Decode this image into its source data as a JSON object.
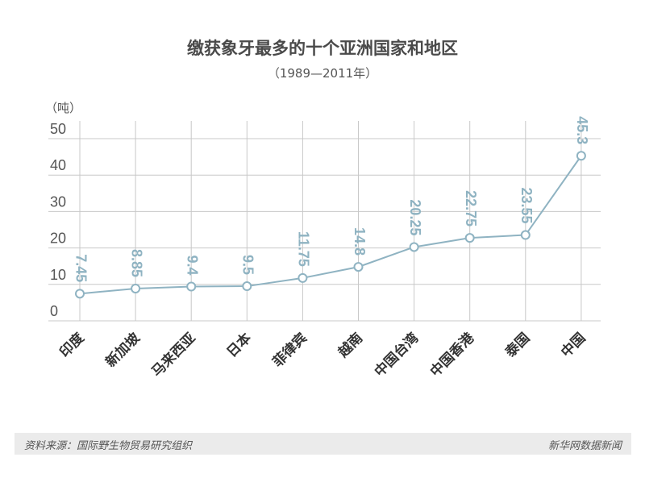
{
  "chart_data": {
    "type": "line",
    "title": "缴获象牙最多的十个亚洲国家和地区",
    "subtitle": "（1989—2011年）",
    "ylabel": "（吨）",
    "xlabel": "",
    "ylim": [
      0,
      50
    ],
    "yticks": [
      "0",
      "10",
      "20",
      "30",
      "40",
      "50"
    ],
    "grid": true,
    "categories": [
      "印度",
      "新加坡",
      "马来西亚",
      "日本",
      "菲律宾",
      "越南",
      "中国台湾",
      "中国香港",
      "泰国",
      "中国"
    ],
    "values": [
      7.45,
      8.85,
      9.4,
      9.5,
      11.75,
      14.8,
      20.25,
      22.75,
      23.55,
      45.3
    ],
    "value_labels": [
      "7.45",
      "8.85",
      "9.4",
      "9.5",
      "11.75",
      "14.8",
      "20.25",
      "22.75",
      "23.55",
      "45.3"
    ]
  },
  "footer": {
    "source": "资料来源：国际野生物贸易研究组织",
    "brand": "新华网数据新闻"
  },
  "colors": {
    "line": "#8fb3c2",
    "label": "#8fb3c2",
    "grid": "#c8c8c8",
    "axis_text": "#555555",
    "category_text": "#333333"
  }
}
